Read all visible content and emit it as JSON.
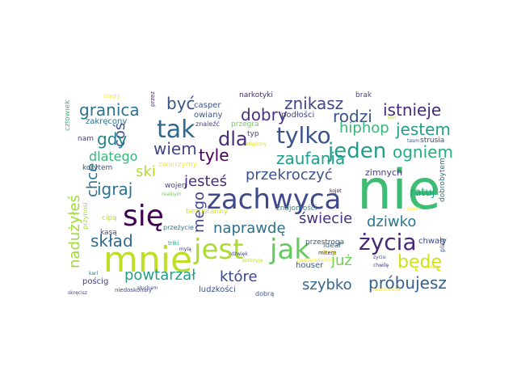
{
  "words": [
    {
      "text": "nie",
      "color": "#3fbc73"
    },
    {
      "text": "mnie",
      "color": "#bddf26"
    },
    {
      "text": "jest",
      "color": "#addc30"
    },
    {
      "text": "jak",
      "color": "#65cb5e"
    },
    {
      "text": "zachwyca",
      "color": "#3e4989"
    },
    {
      "text": "się",
      "color": "#440154"
    },
    {
      "text": "tak",
      "color": "#31688e"
    },
    {
      "text": "tylko",
      "color": "#3b528b"
    },
    {
      "text": "jeden",
      "color": "#1f9e89"
    },
    {
      "text": "dla",
      "color": "#472d7b"
    },
    {
      "text": "życia",
      "color": "#482878"
    },
    {
      "text": "granica",
      "color": "#2c728e"
    },
    {
      "text": "być",
      "color": "#3b528b"
    },
    {
      "text": "dobry",
      "color": "#46327e"
    },
    {
      "text": "znikasz",
      "color": "#404688"
    },
    {
      "text": "rodzi",
      "color": "#3b528b"
    },
    {
      "text": "istnieje",
      "color": "#482878"
    },
    {
      "text": "hiphop",
      "color": "#35b779"
    },
    {
      "text": "jestem",
      "color": "#1f9e89"
    },
    {
      "text": "ogniem",
      "color": "#25ac82"
    },
    {
      "text": "coś",
      "color": "#3b528b"
    },
    {
      "text": "gdy",
      "color": "#26828e"
    },
    {
      "text": "wiem",
      "color": "#414487"
    },
    {
      "text": "tyle",
      "color": "#440154"
    },
    {
      "text": "dlatego",
      "color": "#35b779"
    },
    {
      "text": "zaufania",
      "color": "#1f9e89"
    },
    {
      "text": "ski",
      "color": "#b5de2b"
    },
    {
      "text": "igraj",
      "color": "#2c728e"
    },
    {
      "text": "jesteś",
      "color": "#472d7b"
    },
    {
      "text": "przekroczyć",
      "color": "#3b528b"
    },
    {
      "text": "mego",
      "color": "#414487"
    },
    {
      "text": "naprawdę",
      "color": "#2c728e"
    },
    {
      "text": "świecie",
      "color": "#46327e"
    },
    {
      "text": "dziwko",
      "color": "#2a788e"
    },
    {
      "text": "skład",
      "color": "#31688e"
    },
    {
      "text": "będę",
      "color": "#d0e11c"
    },
    {
      "text": "już",
      "color": "#6ece58"
    },
    {
      "text": "powtarzał",
      "color": "#1f9e89"
    },
    {
      "text": "które",
      "color": "#3e4989"
    },
    {
      "text": "szybko",
      "color": "#31688e"
    },
    {
      "text": "próbujesz",
      "color": "#355f8d"
    },
    {
      "text": "nadużyłeś",
      "color": "#a0da39"
    },
    {
      "text": "chce",
      "color": "#2c728e"
    },
    {
      "text": "ratuj",
      "color": "#20a486"
    },
    {
      "text": "zimnych",
      "color": "#443983"
    },
    {
      "text": "casper",
      "color": "#3b528b"
    },
    {
      "text": "narkotyki",
      "color": "#482878"
    },
    {
      "text": "brak",
      "color": "#414487"
    },
    {
      "text": "ciągły",
      "color": "#fde725"
    },
    {
      "text": "przez",
      "color": "#482878"
    },
    {
      "text": "człowiek",
      "color": "#3fbc73"
    },
    {
      "text": "zakręcony",
      "color": "#2d708e"
    },
    {
      "text": "owiany",
      "color": "#39558c"
    },
    {
      "text": "znaleźć",
      "color": "#404688"
    },
    {
      "text": "przegra",
      "color": "#6ece58"
    },
    {
      "text": "podłości",
      "color": "#414487"
    },
    {
      "text": "typ",
      "color": "#443a83"
    },
    {
      "text": "otępiony",
      "color": "#dde318"
    },
    {
      "text": "nam",
      "color": "#404688"
    },
    {
      "text": "lasn",
      "color": "#bddf26"
    },
    {
      "text": "tasm",
      "color": "#3b528b"
    },
    {
      "text": "strusia",
      "color": "#404688"
    },
    {
      "text": "dobrobytem",
      "color": "#2c728e"
    },
    {
      "text": "korytem",
      "color": "#39568c"
    },
    {
      "text": "zwierzymy",
      "color": "#fde725"
    },
    {
      "text": "wojen",
      "color": "#404688"
    },
    {
      "text": "realnym",
      "color": "#6ece58"
    },
    {
      "text": "kojot",
      "color": "#440154"
    },
    {
      "text": "przynosi",
      "color": "#9fda3a"
    },
    {
      "text": "cipą",
      "color": "#bddf26"
    },
    {
      "text": "bezustanny",
      "color": "#d8e219"
    },
    {
      "text": "znajomości",
      "color": "#238a8d"
    },
    {
      "text": "jogiki",
      "color": "#fde725"
    },
    {
      "text": "kasą",
      "color": "#404688"
    },
    {
      "text": "przeżycie",
      "color": "#2a788e"
    },
    {
      "text": "triki",
      "color": "#22a884"
    },
    {
      "text": "dźwięk",
      "color": "#414487"
    },
    {
      "text": "mylą",
      "color": "#472d7b"
    },
    {
      "text": "ideał",
      "color": "#2c728e"
    },
    {
      "text": "duszą",
      "color": "#fde725"
    },
    {
      "text": "chwały",
      "color": "#3e4989"
    },
    {
      "text": "zyciu",
      "color": "#404688"
    },
    {
      "text": "chwilę",
      "color": "#472d7b"
    },
    {
      "text": "plag",
      "color": "#39568c"
    },
    {
      "text": "mózg",
      "color": "#dde318"
    },
    {
      "text": "houser",
      "color": "#355f8d"
    },
    {
      "text": "mitem",
      "color": "#46337e"
    },
    {
      "text": "przeżyję",
      "color": "#bddf26"
    },
    {
      "text": "pościg",
      "color": "#424186"
    },
    {
      "text": "karl",
      "color": "#2c728e"
    },
    {
      "text": "słucham",
      "color": "#3b528b"
    },
    {
      "text": "skręcisz",
      "color": "#404688"
    },
    {
      "text": "niedoskonały",
      "color": "#404688"
    },
    {
      "text": "ludzkości",
      "color": "#3b528b"
    },
    {
      "text": "dobrą",
      "color": "#355f8d"
    },
    {
      "text": "zwariowany",
      "color": "#fde725"
    },
    {
      "text": "przestroga",
      "color": "#39568c"
    },
    {
      "text": "podświadomość",
      "color": "#fde725"
    }
  ]
}
